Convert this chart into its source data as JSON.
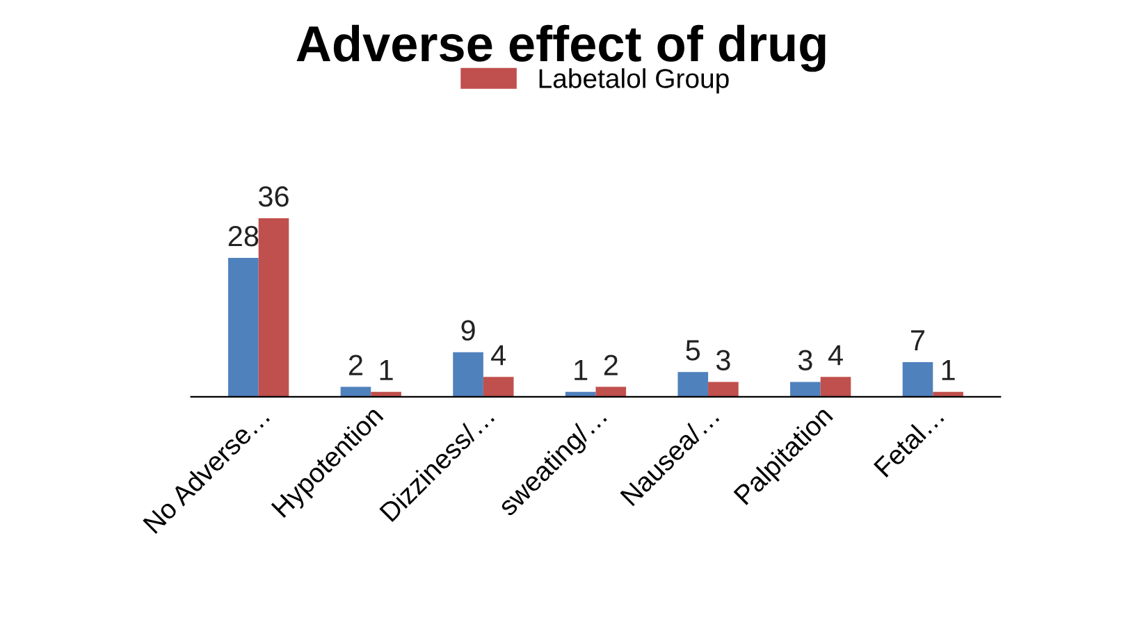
{
  "chart_data": {
    "type": "bar",
    "title": "Adverse effect of drug",
    "categories": [
      "No Adverse…",
      "Hypotention",
      "Dizziness/…",
      "sweating/…",
      "Nausea/…",
      "Palpitation",
      "Fetal…"
    ],
    "series": [
      {
        "color": "#4f81bd",
        "values": [
          28,
          2,
          9,
          1,
          5,
          3,
          7
        ]
      },
      {
        "name": "Labetalol Group",
        "color": "#c0504d",
        "values": [
          36,
          1,
          4,
          2,
          3,
          4,
          1
        ]
      }
    ],
    "data_labels": true,
    "legend": "top",
    "grid": false
  }
}
